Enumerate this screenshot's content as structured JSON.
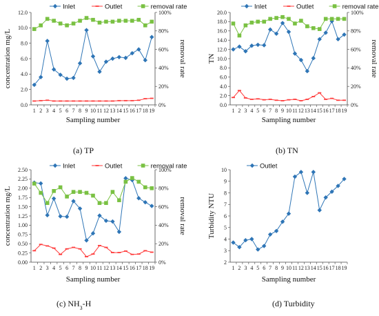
{
  "colors": {
    "inlet": "#2e75b6",
    "outlet": "#ff3b3b",
    "removal": "#7ac143",
    "axis": "#444444"
  },
  "chart_data": [
    {
      "id": "TP",
      "type": "line",
      "caption": "(a)  TP",
      "xlabel": "Sampling number",
      "ylabel": "concentration mg/L",
      "y2label": "removal rate",
      "x": [
        1,
        2,
        3,
        4,
        5,
        6,
        7,
        8,
        9,
        10,
        11,
        12,
        13,
        14,
        15,
        16,
        17,
        18,
        19
      ],
      "ylim": [
        0,
        12
      ],
      "yticks": [
        "0.0",
        "2.0",
        "4.0",
        "6.0",
        "8.0",
        "10.0",
        "12.0"
      ],
      "y2lim": [
        0,
        100
      ],
      "y2ticks": [
        "0%",
        "20%",
        "40%",
        "60%",
        "80%",
        "100%"
      ],
      "legend": [
        "Inlet",
        "Outlet",
        "removal rate"
      ],
      "series": [
        {
          "name": "Inlet",
          "axis": "left",
          "values": [
            2.6,
            3.6,
            8.3,
            4.6,
            3.9,
            3.4,
            3.5,
            5.4,
            9.7,
            6.3,
            4.3,
            5.6,
            6.0,
            6.2,
            6.1,
            6.7,
            7.2,
            5.8,
            8.8
          ]
        },
        {
          "name": "Outlet",
          "axis": "left",
          "values": [
            0.5,
            0.55,
            0.6,
            0.5,
            0.5,
            0.5,
            0.5,
            0.5,
            0.5,
            0.5,
            0.5,
            0.5,
            0.5,
            0.55,
            0.55,
            0.55,
            0.6,
            0.8,
            0.85
          ]
        },
        {
          "name": "removal rate",
          "axis": "right",
          "values": [
            82,
            86,
            93,
            91,
            88,
            86,
            88,
            91,
            94,
            92,
            89,
            90,
            90,
            91,
            91,
            91,
            92,
            86,
            90
          ]
        }
      ]
    },
    {
      "id": "TN",
      "type": "line",
      "caption": "(b)  TN",
      "xlabel": "Sampling number",
      "ylabel": "TN",
      "y2label": "removal rate",
      "x": [
        1,
        2,
        3,
        4,
        5,
        6,
        7,
        8,
        9,
        10,
        11,
        12,
        13,
        14,
        15,
        16,
        17,
        18,
        19
      ],
      "ylim": [
        0,
        20
      ],
      "yticks": [
        "0.0",
        "2.0",
        "4.0",
        "6.0",
        "8.0",
        "10.0",
        "12.0",
        "14.0",
        "16.0",
        "18.0",
        "20.0"
      ],
      "y2lim": [
        0,
        100
      ],
      "y2ticks": [
        "0%",
        "20%",
        "40%",
        "60%",
        "80%",
        "100%"
      ],
      "legend": [
        "Inlet",
        "Outlet",
        "removal rate"
      ],
      "series": [
        {
          "name": "Inlet",
          "axis": "left",
          "values": [
            12.0,
            12.6,
            11.6,
            12.8,
            13.0,
            12.9,
            16.3,
            15.4,
            17.7,
            15.8,
            11.1,
            9.7,
            7.3,
            10.1,
            14.2,
            15.6,
            18.1,
            14.2,
            15.2
          ]
        },
        {
          "name": "Outlet",
          "axis": "left",
          "values": [
            1.6,
            3.1,
            1.5,
            1.2,
            1.3,
            1.1,
            1.2,
            1.0,
            0.9,
            1.1,
            1.2,
            0.9,
            1.2,
            1.8,
            2.6,
            1.2,
            1.4,
            1.0,
            1.0
          ]
        },
        {
          "name": "removal rate",
          "axis": "right",
          "values": [
            88,
            75,
            86,
            89,
            90,
            90,
            93,
            94,
            95,
            93,
            88,
            91,
            85,
            83,
            82,
            93,
            93,
            93,
            93
          ]
        }
      ]
    },
    {
      "id": "NH3",
      "type": "line",
      "caption_parts": [
        "(c)  NH",
        "3",
        "-H"
      ],
      "xlabel": "Sampling number",
      "ylabel": "concentration mg/L",
      "y2label": "removal rate",
      "x": [
        1,
        2,
        3,
        4,
        5,
        6,
        7,
        8,
        9,
        10,
        11,
        12,
        13,
        14,
        15,
        16,
        17,
        18,
        19
      ],
      "ylim": [
        0,
        2.5
      ],
      "yticks": [
        "0.00",
        "0.25",
        "0.50",
        "0.75",
        "1.00",
        "1.25",
        "1.50",
        "1.75",
        "2.00",
        "2.25",
        "2.50"
      ],
      "y2lim": [
        0,
        100
      ],
      "y2ticks": [
        "0%",
        "20%",
        "40%",
        "60%",
        "80%",
        "100%"
      ],
      "legend": [
        "Inlet",
        "Outlet",
        "removal rate"
      ],
      "series": [
        {
          "name": "Inlet",
          "axis": "left",
          "values": [
            2.15,
            2.13,
            1.27,
            1.72,
            1.24,
            1.23,
            1.65,
            1.45,
            0.59,
            0.78,
            1.26,
            1.12,
            1.1,
            0.82,
            2.27,
            2.22,
            1.73,
            1.62,
            1.52
          ]
        },
        {
          "name": "Outlet",
          "axis": "left",
          "values": [
            0.31,
            0.48,
            0.44,
            0.38,
            0.21,
            0.36,
            0.4,
            0.36,
            0.15,
            0.22,
            0.45,
            0.4,
            0.26,
            0.26,
            0.3,
            0.21,
            0.22,
            0.31,
            0.27
          ]
        },
        {
          "name": "removal rate",
          "axis": "right",
          "values": [
            85,
            75,
            64,
            77,
            81,
            71,
            76,
            76,
            75,
            72,
            64,
            64,
            76,
            67,
            87,
            91,
            87,
            81,
            80
          ]
        }
      ]
    },
    {
      "id": "Turbidity",
      "type": "line",
      "caption": "(d)  Turbidity",
      "xlabel": "Sampling number",
      "ylabel": "Turbidity NTU",
      "x": [
        1,
        2,
        3,
        4,
        5,
        6,
        7,
        8,
        9,
        10,
        11,
        12,
        13,
        14,
        15,
        16,
        17,
        18,
        19
      ],
      "ylim": [
        2,
        10
      ],
      "yticks": [
        "2",
        "3",
        "4",
        "5",
        "6",
        "7",
        "8",
        "9",
        "10"
      ],
      "legend": [
        "Outlet"
      ],
      "series": [
        {
          "name": "Outlet",
          "axis": "left",
          "values": [
            3.7,
            3.3,
            3.9,
            4.0,
            3.1,
            3.4,
            4.4,
            4.7,
            5.5,
            6.2,
            9.4,
            9.8,
            8.0,
            9.8,
            6.5,
            7.6,
            8.1,
            8.6,
            9.2
          ]
        }
      ]
    }
  ]
}
